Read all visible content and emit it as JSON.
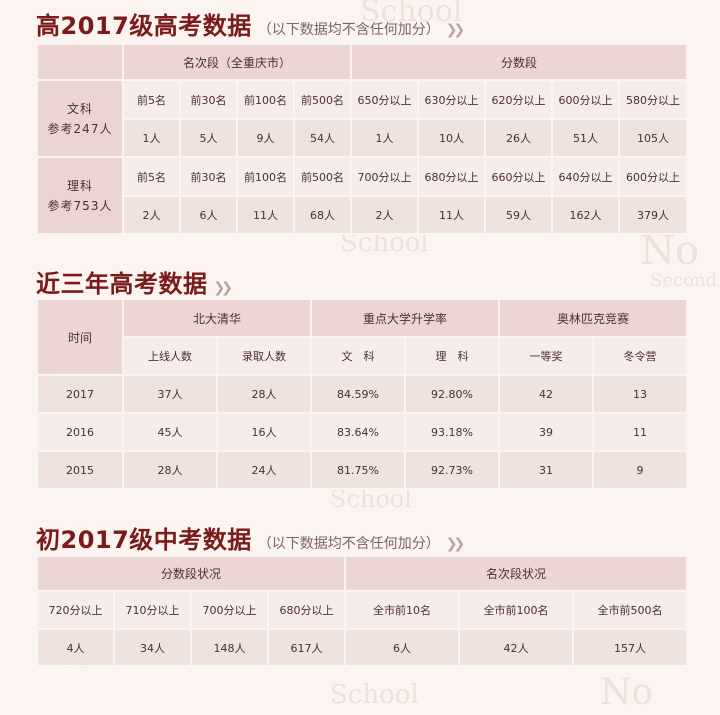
{
  "section1": {
    "title": "高2017级高考数据",
    "note": "（以下数据均不含任何加分）",
    "headers": {
      "rank": "名次段（全重庆市）",
      "score": "分数段"
    },
    "rows": [
      {
        "label1": "文科",
        "label2": "参考247人",
        "rank_labels": [
          "前5名",
          "前30名",
          "前100名",
          "前500名"
        ],
        "rank_values": [
          "1人",
          "5人",
          "9人",
          "54人"
        ],
        "score_labels": [
          "650分以上",
          "630分以上",
          "620分以上",
          "600分以上",
          "580分以上"
        ],
        "score_values": [
          "1人",
          "10人",
          "26人",
          "51人",
          "105人"
        ]
      },
      {
        "label1": "理科",
        "label2": "参考753人",
        "rank_labels": [
          "前5名",
          "前30名",
          "前100名",
          "前500名"
        ],
        "rank_values": [
          "2人",
          "6人",
          "11人",
          "68人"
        ],
        "score_labels": [
          "700分以上",
          "680分以上",
          "660分以上",
          "640分以上",
          "600分以上"
        ],
        "score_values": [
          "2人",
          "11人",
          "59人",
          "162人",
          "379人"
        ]
      }
    ]
  },
  "section2": {
    "title": "近三年高考数据",
    "headers": {
      "time": "时间",
      "group1": "北大清华",
      "group2": "重点大学升学率",
      "group3": "奥林匹克竞赛",
      "sub": [
        "上线人数",
        "录取人数",
        "文　科",
        "理　科",
        "一等奖",
        "冬令营"
      ]
    },
    "rows": [
      {
        "year": "2017",
        "values": [
          "37人",
          "28人",
          "84.59%",
          "92.80%",
          "42",
          "13"
        ]
      },
      {
        "year": "2016",
        "values": [
          "45人",
          "16人",
          "83.64%",
          "93.18%",
          "39",
          "11"
        ]
      },
      {
        "year": "2015",
        "values": [
          "28人",
          "24人",
          "81.75%",
          "92.73%",
          "31",
          "9"
        ]
      }
    ]
  },
  "section3": {
    "title": "初2017级中考数据",
    "note": "（以下数据均不含任何加分）",
    "headers": {
      "score": "分数段状况",
      "rank": "名次段状况"
    },
    "score_labels": [
      "720分以上",
      "710分以上",
      "700分以上",
      "680分以上"
    ],
    "score_values": [
      "4人",
      "34人",
      "148人",
      "617人"
    ],
    "rank_labels": [
      "全市前10名",
      "全市前100名",
      "全市前500名"
    ],
    "rank_values": [
      "6人",
      "42人",
      "157人"
    ]
  },
  "watermarks": [
    "School",
    "School",
    "No",
    "Second",
    "School",
    "No",
    "School",
    "No"
  ]
}
